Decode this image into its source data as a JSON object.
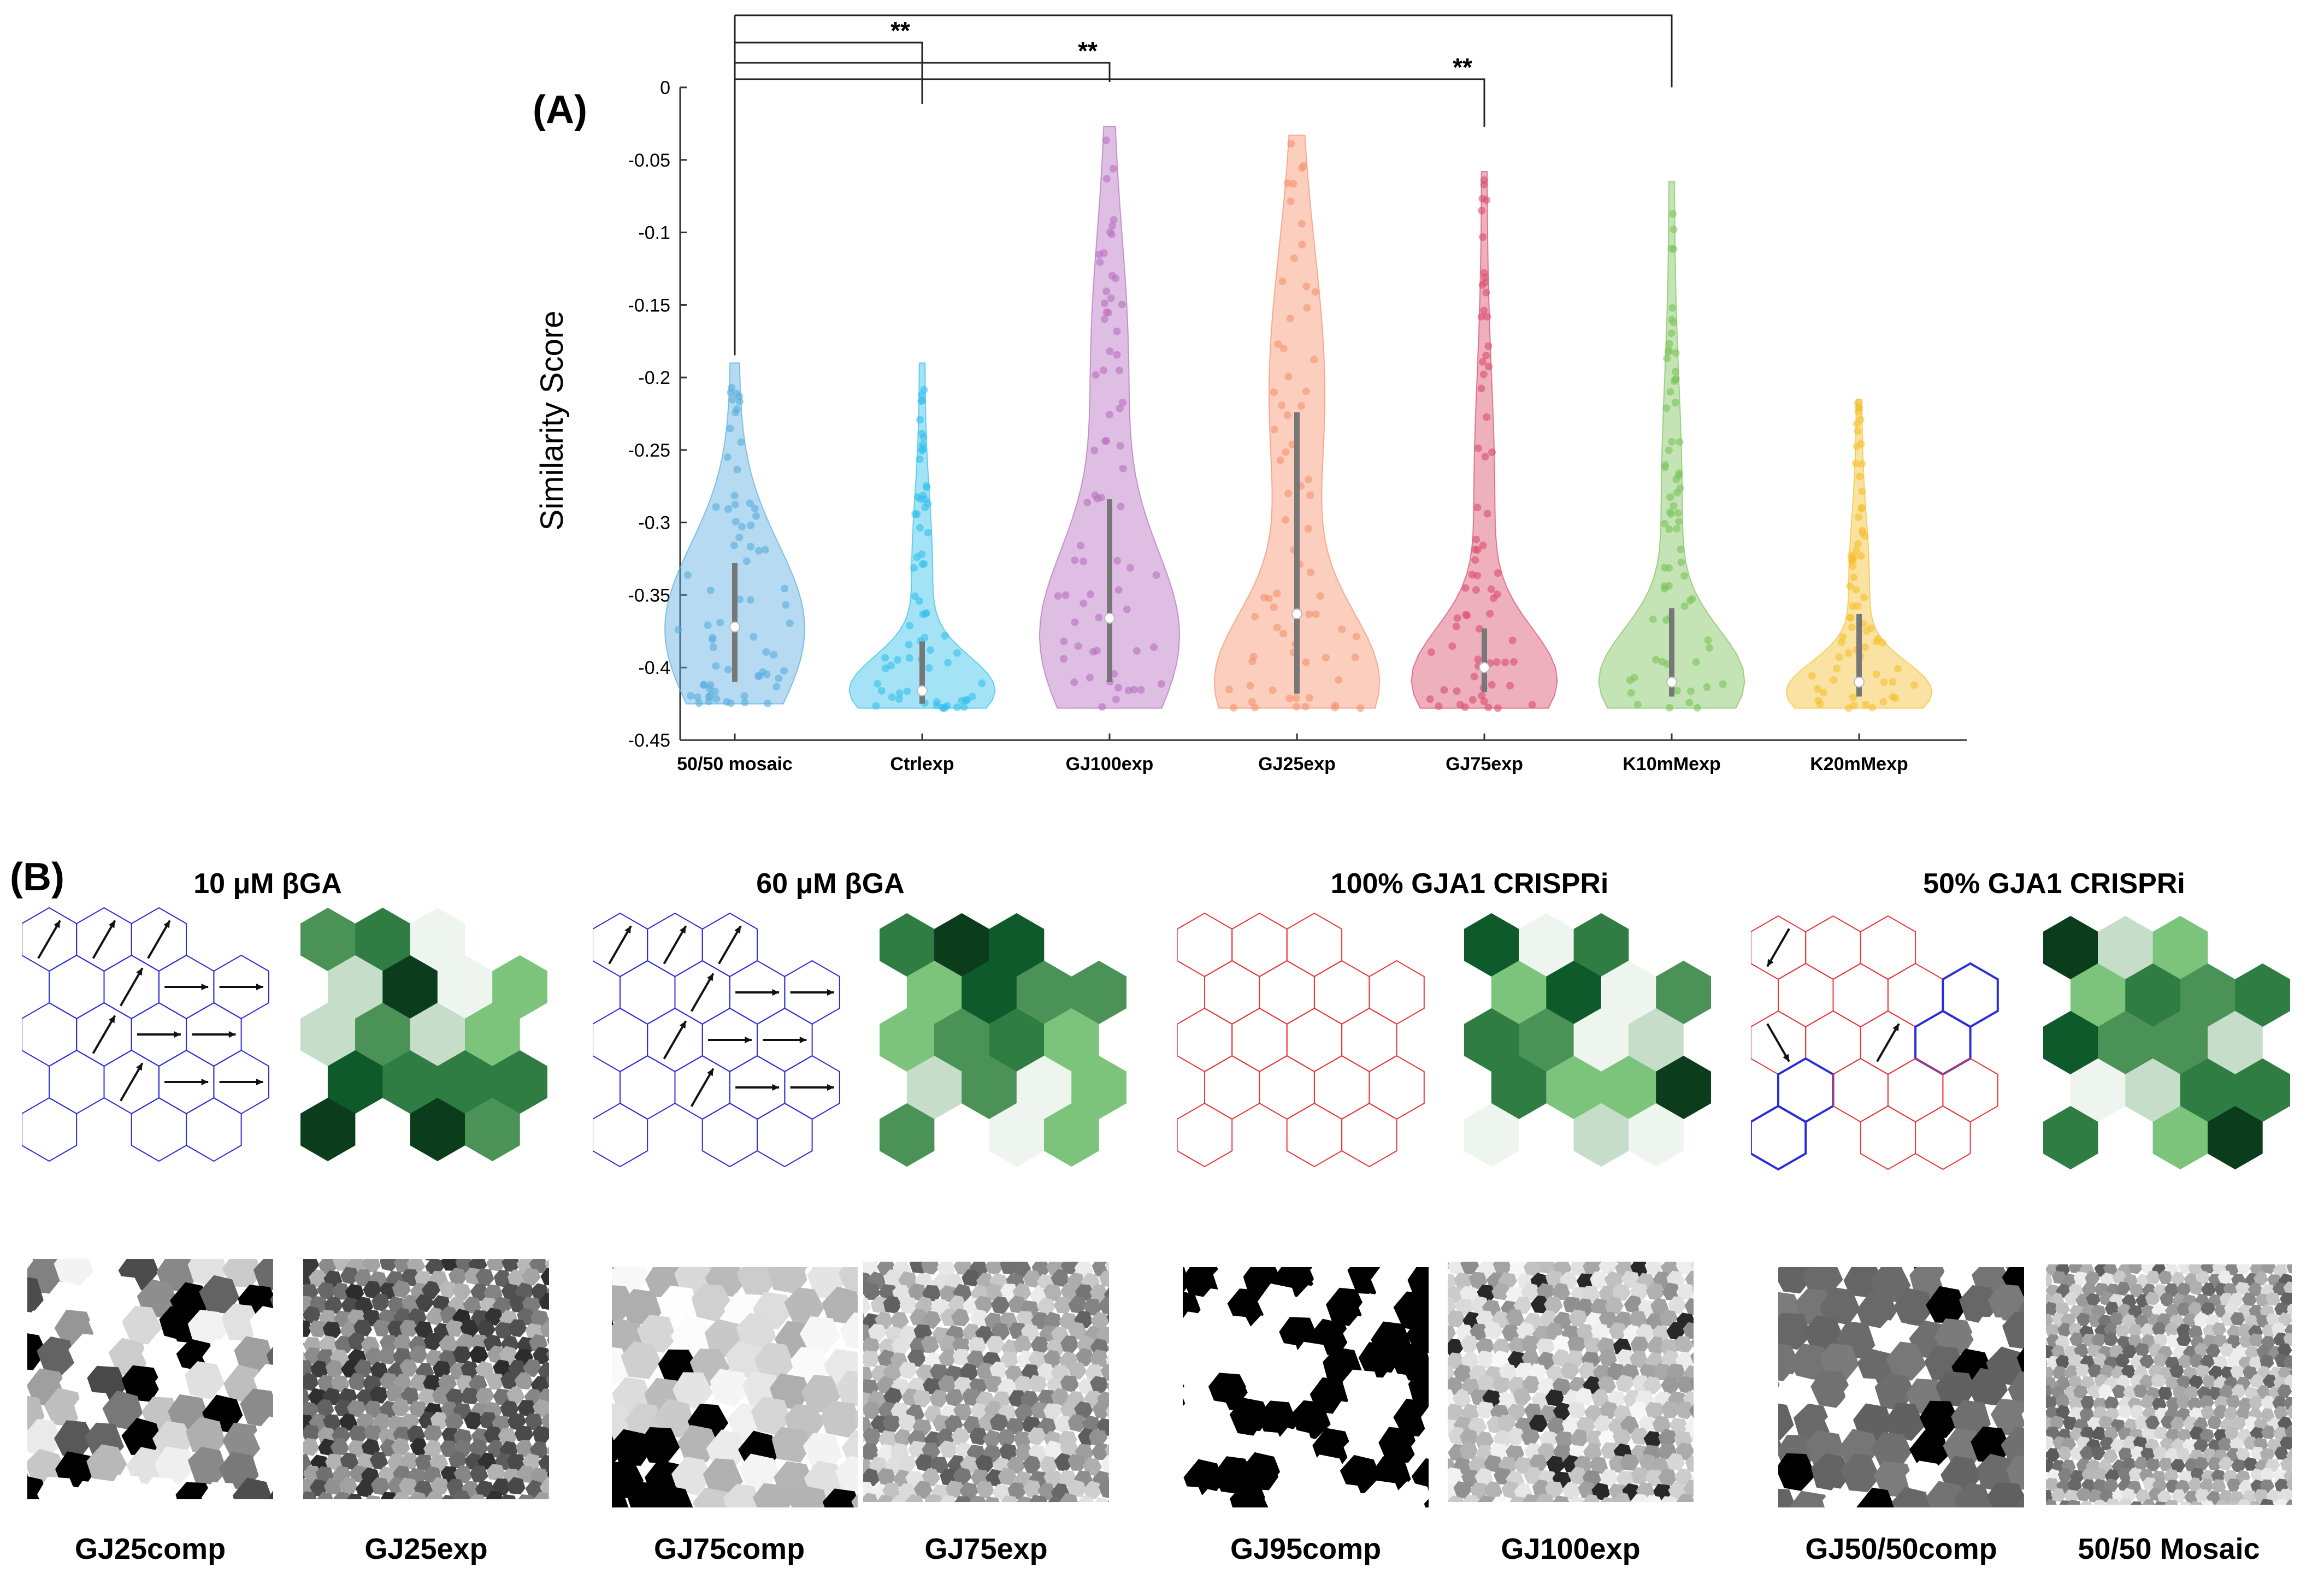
{
  "panel_a_label": "(A)",
  "panel_b_label": "(B)",
  "chart_data": {
    "type": "violin",
    "ylabel": "Similarity Score",
    "xlabel": "",
    "ylim": [
      -0.45,
      0
    ],
    "yticks": [
      0,
      -0.05,
      -0.1,
      -0.15,
      -0.2,
      -0.25,
      -0.3,
      -0.35,
      -0.4,
      -0.45
    ],
    "ytick_labels": [
      "0",
      "-0.05",
      "-0.1",
      "-0.15",
      "-0.2",
      "-0.25",
      "-0.3",
      "-0.35",
      "-0.4",
      "-0.45"
    ],
    "grid": false,
    "categories": [
      "50/50 mosaic",
      "Ctrlexp",
      "GJ100exp",
      "GJ25exp",
      "GJ75exp",
      "K10mMexp",
      "K20mMexp"
    ],
    "colors": [
      "#5aaee0",
      "#35c0ec",
      "#b86fc0",
      "#f7926e",
      "#d94f6c",
      "#7cc45a",
      "#f5c030"
    ],
    "series": [
      {
        "min": -0.425,
        "max": -0.19,
        "q1": -0.41,
        "median": -0.372,
        "q3": -0.328
      },
      {
        "min": -0.428,
        "max": -0.19,
        "q1": -0.425,
        "median": -0.416,
        "q3": -0.382
      },
      {
        "min": -0.428,
        "max": -0.027,
        "q1": -0.41,
        "median": -0.366,
        "q3": -0.284
      },
      {
        "min": -0.428,
        "max": -0.033,
        "q1": -0.418,
        "median": -0.363,
        "q3": -0.224
      },
      {
        "min": -0.428,
        "max": -0.058,
        "q1": -0.417,
        "median": -0.4,
        "q3": -0.373
      },
      {
        "min": -0.428,
        "max": -0.065,
        "q1": -0.42,
        "median": -0.41,
        "q3": -0.359
      },
      {
        "min": -0.428,
        "max": -0.215,
        "q1": -0.42,
        "median": -0.41,
        "q3": -0.363
      }
    ],
    "significance": [
      {
        "from": "50/50 mosaic",
        "to": "Ctrlexp",
        "label": "**"
      },
      {
        "from": "50/50 mosaic",
        "to": "GJ100exp",
        "label": "**"
      },
      {
        "from": "50/50 mosaic",
        "to": "GJ75exp",
        "label": "**"
      },
      {
        "from": "50/50 mosaic",
        "to": "K10mMexp",
        "label": ""
      }
    ]
  },
  "panel_b": {
    "sections": [
      {
        "title": "10 μM βGA"
      },
      {
        "title": "60 μM βGA"
      },
      {
        "title": "100% GJA1 CRISPRi"
      },
      {
        "title": "50% GJA1 CRISPRi"
      }
    ],
    "image_labels": [
      "GJ25comp",
      "GJ25exp",
      "GJ75comp",
      "GJ75exp",
      "GJ95comp",
      "GJ100exp",
      "GJ50/50comp",
      "50/50 Mosaic"
    ],
    "hex_outline_colors": [
      "#2b2bd9",
      "#e8363c"
    ],
    "green_palette": [
      "#0b3d1c",
      "#0f5a2a",
      "#2f7d43",
      "#4b9257",
      "#7cc47c",
      "#c5ddc9",
      "#eef5ee"
    ]
  }
}
